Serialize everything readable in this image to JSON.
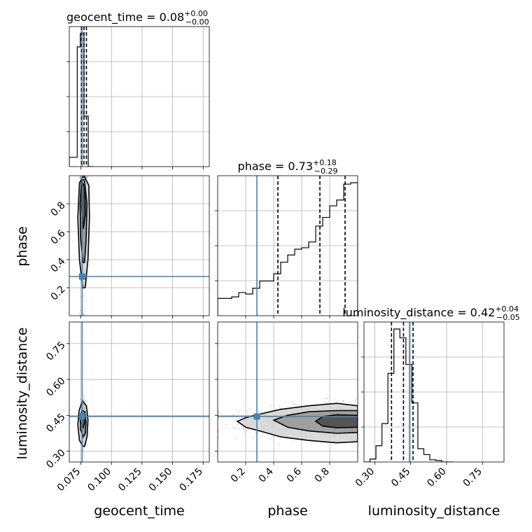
{
  "chart_data": {
    "type": "corner",
    "parameters": [
      {
        "name": "geocent_time",
        "label": "geocent_time",
        "title": "geocent_time = 0.08",
        "median": "0.08",
        "upper": "+0.00",
        "lower": "−0.00"
      },
      {
        "name": "phase",
        "label": "phase",
        "title": "phase = 0.73",
        "median": "0.73",
        "upper": "+0.18",
        "lower": "−0.29"
      },
      {
        "name": "luminosity_distance",
        "label": "luminosity_distance",
        "title": "luminosity_distance = 0.42",
        "median": "0.42",
        "upper": "+0.04",
        "lower": "−0.05"
      }
    ],
    "ranges": {
      "geocent_time": [
        0.0655,
        0.18
      ],
      "phase": [
        0.0,
        1.0
      ],
      "luminosity_distance": [
        0.255,
        0.84
      ]
    },
    "ticks": {
      "geocent_time": [
        "0.075",
        "0.100",
        "0.125",
        "0.150",
        "0.175"
      ],
      "phase": [
        "0.2",
        "0.4",
        "0.6",
        "0.8"
      ],
      "luminosity_distance": [
        "0.30",
        "0.45",
        "0.60",
        "0.75"
      ]
    },
    "injection": {
      "geocent_time": 0.076,
      "phase": 0.28,
      "luminosity_distance": 0.445
    },
    "injection_color": "#4682b4",
    "grid": true,
    "quantiles": {
      "geocent_time": [
        0.0755,
        0.0775,
        0.0795
      ],
      "phase": [
        0.43,
        0.73,
        0.91
      ],
      "luminosity_distance": [
        0.37,
        0.42,
        0.46
      ]
    },
    "histograms": {
      "geocent_time": {
        "edges": [
          0.0655,
          0.072,
          0.0745,
          0.0775,
          0.081,
          0.0855
        ],
        "counts": [
          0.07,
          0.9,
          1.0,
          0.38,
          0.0
        ]
      },
      "phase": {
        "edges": [
          0.0,
          0.05,
          0.1,
          0.15,
          0.2,
          0.25,
          0.3,
          0.35,
          0.4,
          0.45,
          0.5,
          0.55,
          0.6,
          0.65,
          0.7,
          0.75,
          0.8,
          0.85,
          0.9,
          0.95,
          1.0
        ],
        "counts": [
          0.12,
          0.12,
          0.13,
          0.16,
          0.15,
          0.19,
          0.24,
          0.24,
          0.29,
          0.37,
          0.42,
          0.46,
          0.47,
          0.51,
          0.62,
          0.68,
          0.76,
          0.8,
          0.91,
          0.92
        ]
      },
      "luminosity_distance": {
        "edges": [
          0.255,
          0.28,
          0.305,
          0.33,
          0.355,
          0.38,
          0.405,
          0.43,
          0.455,
          0.48,
          0.505,
          0.53,
          0.555,
          0.58,
          0.605,
          0.63
        ],
        "counts": [
          0.0,
          0.02,
          0.11,
          0.26,
          0.6,
          0.9,
          0.84,
          0.66,
          0.4,
          0.09,
          0.05,
          0.015,
          0.01,
          0.0,
          0.0
        ]
      }
    },
    "contours": {
      "phase_vs_geocent_time": [
        [
          [
            0.0765,
            0.2
          ],
          [
            0.0738,
            0.4
          ],
          [
            0.0725,
            0.7
          ],
          [
            0.0738,
            0.95
          ],
          [
            0.0775,
            1.0
          ],
          [
            0.0815,
            0.93
          ],
          [
            0.082,
            0.7
          ],
          [
            0.0808,
            0.4
          ],
          [
            0.0785,
            0.2
          ],
          [
            0.0765,
            0.2
          ]
        ],
        [
          [
            0.0768,
            0.38
          ],
          [
            0.0748,
            0.55
          ],
          [
            0.0743,
            0.8
          ],
          [
            0.0755,
            0.97
          ],
          [
            0.0778,
            0.97
          ],
          [
            0.08,
            0.8
          ],
          [
            0.0793,
            0.55
          ],
          [
            0.078,
            0.38
          ],
          [
            0.0768,
            0.38
          ]
        ],
        [
          [
            0.077,
            0.62
          ],
          [
            0.0755,
            0.78
          ],
          [
            0.076,
            0.95
          ],
          [
            0.0782,
            0.92
          ],
          [
            0.0786,
            0.72
          ],
          [
            0.077,
            0.62
          ]
        ]
      ],
      "luminosity_distance_vs_geocent_time": [
        [
          [
            0.077,
            0.32
          ],
          [
            0.0738,
            0.345
          ],
          [
            0.0725,
            0.41
          ],
          [
            0.0735,
            0.47
          ],
          [
            0.0762,
            0.51
          ],
          [
            0.0795,
            0.49
          ],
          [
            0.0808,
            0.43
          ],
          [
            0.08,
            0.36
          ],
          [
            0.078,
            0.32
          ],
          [
            0.077,
            0.32
          ]
        ],
        [
          [
            0.077,
            0.36
          ],
          [
            0.0748,
            0.39
          ],
          [
            0.0745,
            0.43
          ],
          [
            0.0758,
            0.47
          ],
          [
            0.0782,
            0.465
          ],
          [
            0.0792,
            0.42
          ],
          [
            0.0786,
            0.375
          ],
          [
            0.077,
            0.36
          ]
        ],
        [
          [
            0.077,
            0.4
          ],
          [
            0.0758,
            0.415
          ],
          [
            0.0762,
            0.445
          ],
          [
            0.0776,
            0.45
          ],
          [
            0.0784,
            0.425
          ],
          [
            0.077,
            0.4
          ]
        ]
      ],
      "luminosity_distance_vs_phase": [
        [
          [
            0.14,
            0.425
          ],
          [
            0.2,
            0.4
          ],
          [
            0.3,
            0.385
          ],
          [
            0.45,
            0.36
          ],
          [
            0.65,
            0.345
          ],
          [
            0.85,
            0.335
          ],
          [
            1.0,
            0.34
          ],
          [
            1.0,
            0.49
          ],
          [
            0.85,
            0.5
          ],
          [
            0.65,
            0.49
          ],
          [
            0.45,
            0.475
          ],
          [
            0.3,
            0.455
          ],
          [
            0.2,
            0.44
          ],
          [
            0.14,
            0.425
          ]
        ],
        [
          [
            0.4,
            0.43
          ],
          [
            0.5,
            0.4
          ],
          [
            0.65,
            0.385
          ],
          [
            0.85,
            0.375
          ],
          [
            1.0,
            0.378
          ],
          [
            1.0,
            0.47
          ],
          [
            0.85,
            0.47
          ],
          [
            0.65,
            0.465
          ],
          [
            0.5,
            0.45
          ],
          [
            0.4,
            0.43
          ]
        ],
        [
          [
            0.7,
            0.425
          ],
          [
            0.75,
            0.405
          ],
          [
            0.85,
            0.398
          ],
          [
            1.0,
            0.4
          ],
          [
            1.0,
            0.45
          ],
          [
            0.85,
            0.452
          ],
          [
            0.75,
            0.445
          ],
          [
            0.7,
            0.425
          ]
        ]
      ]
    }
  }
}
